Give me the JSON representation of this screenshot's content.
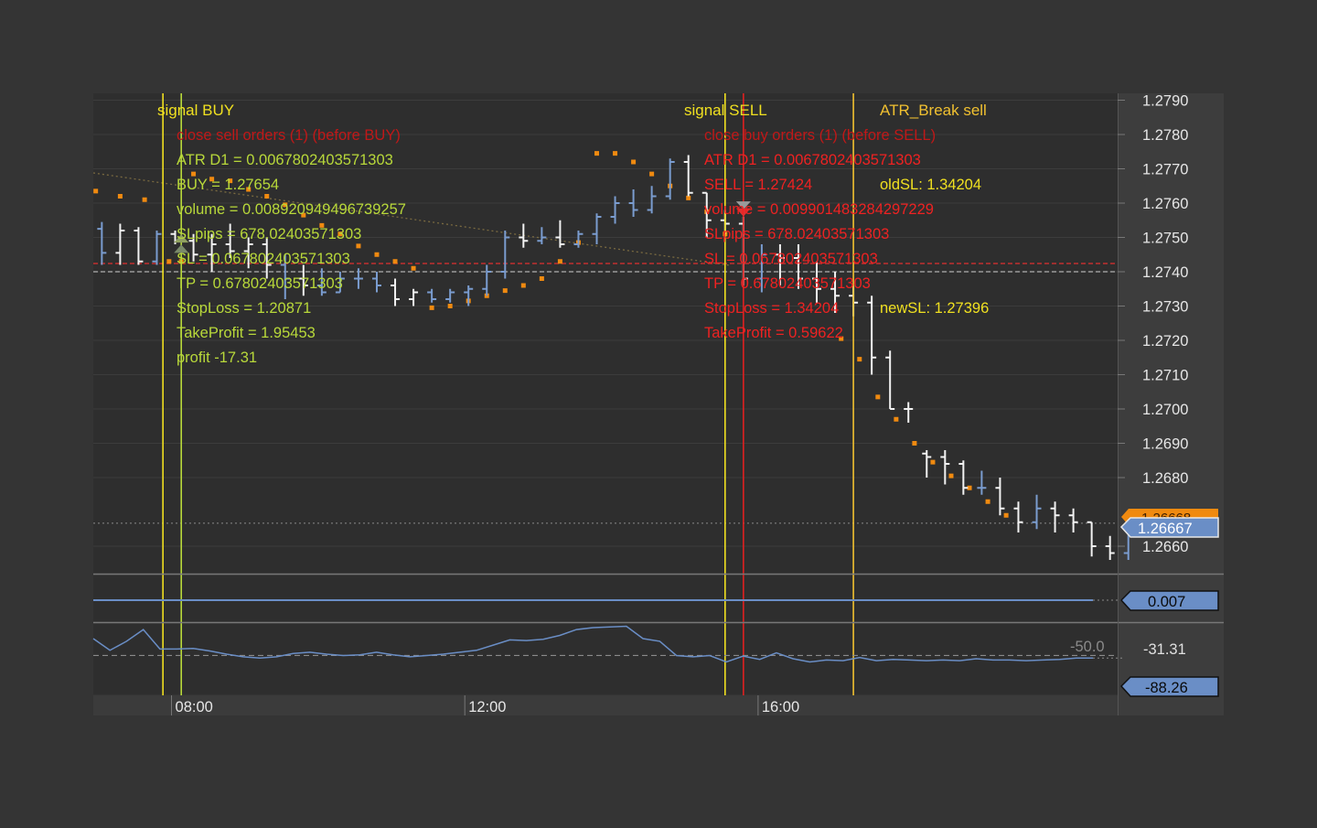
{
  "chart_data": {
    "type": "ohlc",
    "price_axis": {
      "ylim": [
        1.2652,
        1.2792
      ],
      "ticks": [
        "1.2790",
        "1.2780",
        "1.2770",
        "1.2760",
        "1.2750",
        "1.2740",
        "1.2730",
        "1.2720",
        "1.2710",
        "1.2700",
        "1.2690",
        "1.2680",
        "1.2660"
      ],
      "grid": true
    },
    "time_axis": {
      "labels": [
        "08:00",
        "12:00",
        "16:00"
      ],
      "start": "06:53",
      "end": "20:37",
      "bar_minutes": 15
    },
    "last_price_labels": [
      "1.26668",
      "1.26667"
    ],
    "bars": [
      {
        "t": "07:00",
        "o": 1.27525,
        "h": 1.27545,
        "l": 1.2742,
        "c": 1.27455,
        "color": "blue"
      },
      {
        "t": "07:15",
        "o": 1.27455,
        "h": 1.2754,
        "l": 1.2742,
        "c": 1.2752,
        "color": "white"
      },
      {
        "t": "07:30",
        "o": 1.2752,
        "h": 1.2753,
        "l": 1.2742,
        "c": 1.2743,
        "color": "white"
      },
      {
        "t": "07:45",
        "o": 1.2743,
        "h": 1.2752,
        "l": 1.2742,
        "c": 1.2751,
        "color": "blue"
      },
      {
        "t": "08:00",
        "o": 1.2751,
        "h": 1.2752,
        "l": 1.2748,
        "c": 1.2749,
        "color": "white"
      },
      {
        "t": "08:15",
        "o": 1.2749,
        "h": 1.2751,
        "l": 1.2743,
        "c": 1.2745,
        "color": "white"
      },
      {
        "t": "08:30",
        "o": 1.2745,
        "h": 1.2751,
        "l": 1.274,
        "c": 1.2748,
        "color": "white"
      },
      {
        "t": "08:45",
        "o": 1.2748,
        "h": 1.2754,
        "l": 1.2744,
        "c": 1.2746,
        "color": "white"
      },
      {
        "t": "09:00",
        "o": 1.2746,
        "h": 1.275,
        "l": 1.2741,
        "c": 1.2748,
        "color": "white"
      },
      {
        "t": "09:15",
        "o": 1.2748,
        "h": 1.275,
        "l": 1.2738,
        "c": 1.2742,
        "color": "white"
      },
      {
        "t": "09:30",
        "o": 1.2742,
        "h": 1.2745,
        "l": 1.2732,
        "c": 1.2738,
        "color": "blue"
      },
      {
        "t": "09:45",
        "o": 1.2738,
        "h": 1.2742,
        "l": 1.2733,
        "c": 1.2736,
        "color": "white"
      },
      {
        "t": "10:00",
        "o": 1.2736,
        "h": 1.2741,
        "l": 1.2733,
        "c": 1.2734,
        "color": "blue"
      },
      {
        "t": "10:15",
        "o": 1.2734,
        "h": 1.274,
        "l": 1.2734,
        "c": 1.2738,
        "color": "blue"
      },
      {
        "t": "10:30",
        "o": 1.2738,
        "h": 1.2741,
        "l": 1.2735,
        "c": 1.2738,
        "color": "blue"
      },
      {
        "t": "10:45",
        "o": 1.2738,
        "h": 1.274,
        "l": 1.2734,
        "c": 1.2736,
        "color": "blue"
      },
      {
        "t": "11:00",
        "o": 1.2736,
        "h": 1.2738,
        "l": 1.273,
        "c": 1.2732,
        "color": "white"
      },
      {
        "t": "11:15",
        "o": 1.2732,
        "h": 1.2735,
        "l": 1.273,
        "c": 1.2734,
        "color": "white"
      },
      {
        "t": "11:30",
        "o": 1.2734,
        "h": 1.2735,
        "l": 1.2731,
        "c": 1.2732,
        "color": "blue"
      },
      {
        "t": "11:45",
        "o": 1.2732,
        "h": 1.2735,
        "l": 1.2731,
        "c": 1.2734,
        "color": "blue"
      },
      {
        "t": "12:00",
        "o": 1.2734,
        "h": 1.2736,
        "l": 1.273,
        "c": 1.2735,
        "color": "blue"
      },
      {
        "t": "12:15",
        "o": 1.2735,
        "h": 1.2742,
        "l": 1.2733,
        "c": 1.274,
        "color": "blue"
      },
      {
        "t": "12:30",
        "o": 1.274,
        "h": 1.2752,
        "l": 1.2738,
        "c": 1.275,
        "color": "blue"
      },
      {
        "t": "12:45",
        "o": 1.275,
        "h": 1.2754,
        "l": 1.2747,
        "c": 1.2749,
        "color": "white"
      },
      {
        "t": "13:00",
        "o": 1.2749,
        "h": 1.2753,
        "l": 1.2748,
        "c": 1.275,
        "color": "blue"
      },
      {
        "t": "13:15",
        "o": 1.275,
        "h": 1.2755,
        "l": 1.2747,
        "c": 1.2748,
        "color": "white"
      },
      {
        "t": "13:30",
        "o": 1.2748,
        "h": 1.2752,
        "l": 1.2747,
        "c": 1.2751,
        "color": "blue"
      },
      {
        "t": "13:45",
        "o": 1.2751,
        "h": 1.2757,
        "l": 1.2748,
        "c": 1.2756,
        "color": "blue"
      },
      {
        "t": "14:00",
        "o": 1.2756,
        "h": 1.2762,
        "l": 1.2754,
        "c": 1.276,
        "color": "blue"
      },
      {
        "t": "14:15",
        "o": 1.276,
        "h": 1.2764,
        "l": 1.2756,
        "c": 1.2758,
        "color": "blue"
      },
      {
        "t": "14:30",
        "o": 1.2758,
        "h": 1.2765,
        "l": 1.2757,
        "c": 1.2762,
        "color": "blue"
      },
      {
        "t": "14:45",
        "o": 1.2762,
        "h": 1.2773,
        "l": 1.2761,
        "c": 1.2772,
        "color": "blue"
      },
      {
        "t": "15:00",
        "o": 1.2772,
        "h": 1.2774,
        "l": 1.2762,
        "c": 1.2763,
        "color": "white"
      },
      {
        "t": "15:15",
        "o": 1.2763,
        "h": 1.2763,
        "l": 1.275,
        "c": 1.2755,
        "color": "white"
      },
      {
        "t": "15:30",
        "o": 1.2755,
        "h": 1.2758,
        "l": 1.2751,
        "c": 1.2754,
        "color": "white"
      },
      {
        "t": "15:45",
        "o": 1.2754,
        "h": 1.2756,
        "l": 1.2736,
        "c": 1.2738,
        "color": "white"
      },
      {
        "t": "16:00",
        "o": 1.2738,
        "h": 1.2748,
        "l": 1.2734,
        "c": 1.2745,
        "color": "blue"
      },
      {
        "t": "16:15",
        "o": 1.2745,
        "h": 1.2748,
        "l": 1.2736,
        "c": 1.2744,
        "color": "white"
      },
      {
        "t": "16:30",
        "o": 1.2744,
        "h": 1.2748,
        "l": 1.2735,
        "c": 1.2738,
        "color": "white"
      },
      {
        "t": "16:45",
        "o": 1.2738,
        "h": 1.2743,
        "l": 1.2731,
        "c": 1.2735,
        "color": "white"
      },
      {
        "t": "17:00",
        "o": 1.2735,
        "h": 1.274,
        "l": 1.2728,
        "c": 1.2733,
        "color": "white"
      },
      {
        "t": "17:15",
        "o": 1.2733,
        "h": 1.2736,
        "l": 1.2727,
        "c": 1.2731,
        "color": "white"
      },
      {
        "t": "17:30",
        "o": 1.2731,
        "h": 1.2733,
        "l": 1.271,
        "c": 1.2715,
        "color": "white"
      },
      {
        "t": "17:45",
        "o": 1.2715,
        "h": 1.2717,
        "l": 1.27,
        "c": 1.27,
        "color": "white"
      },
      {
        "t": "18:00",
        "o": 1.27,
        "h": 1.2702,
        "l": 1.2696,
        "c": 1.27,
        "color": "white"
      },
      {
        "t": "18:15",
        "o": 1.2687,
        "h": 1.2688,
        "l": 1.268,
        "c": 1.2686,
        "color": "white"
      },
      {
        "t": "18:30",
        "o": 1.2686,
        "h": 1.2688,
        "l": 1.2678,
        "c": 1.2684,
        "color": "white"
      },
      {
        "t": "18:45",
        "o": 1.2684,
        "h": 1.2685,
        "l": 1.2675,
        "c": 1.2677,
        "color": "white"
      },
      {
        "t": "19:00",
        "o": 1.2677,
        "h": 1.2682,
        "l": 1.2675,
        "c": 1.2677,
        "color": "blue"
      },
      {
        "t": "19:15",
        "o": 1.2677,
        "h": 1.268,
        "l": 1.2669,
        "c": 1.2671,
        "color": "white"
      },
      {
        "t": "19:30",
        "o": 1.2671,
        "h": 1.2673,
        "l": 1.2664,
        "c": 1.2667,
        "color": "white"
      },
      {
        "t": "19:45",
        "o": 1.2667,
        "h": 1.2675,
        "l": 1.2665,
        "c": 1.2671,
        "color": "blue"
      },
      {
        "t": "20:00",
        "o": 1.2671,
        "h": 1.2673,
        "l": 1.2664,
        "c": 1.2669,
        "color": "white"
      },
      {
        "t": "20:15",
        "o": 1.2669,
        "h": 1.2671,
        "l": 1.2664,
        "c": 1.2667,
        "color": "white"
      },
      {
        "t": "20:30",
        "o": 1.2667,
        "h": 1.2667,
        "l": 1.2657,
        "c": 1.266,
        "color": "white"
      },
      {
        "t": "20:45",
        "o": 1.266,
        "h": 1.2663,
        "l": 1.2656,
        "c": 1.2658,
        "color": "white"
      },
      {
        "t": "21:00",
        "o": 1.2658,
        "h": 1.2667,
        "l": 1.2656,
        "c": 1.2666,
        "color": "blue"
      },
      {
        "t": "21:15",
        "o": 1.2666,
        "h": 1.2669,
        "l": 1.2664,
        "c": 1.26667,
        "color": "blue"
      }
    ],
    "parabolic_sar": [
      {
        "t": "06:55",
        "v": 1.27635
      },
      {
        "t": "07:15",
        "v": 1.2762
      },
      {
        "t": "07:35",
        "v": 1.2761
      },
      {
        "t": "07:55",
        "v": 1.2743
      },
      {
        "t": "08:05",
        "v": 1.2743
      },
      {
        "t": "08:15",
        "v": 1.27685
      },
      {
        "t": "08:30",
        "v": 1.2767
      },
      {
        "t": "08:45",
        "v": 1.27665
      },
      {
        "t": "09:00",
        "v": 1.2764
      },
      {
        "t": "09:15",
        "v": 1.2762
      },
      {
        "t": "09:30",
        "v": 1.27595
      },
      {
        "t": "09:45",
        "v": 1.27565
      },
      {
        "t": "10:00",
        "v": 1.27535
      },
      {
        "t": "10:15",
        "v": 1.2751
      },
      {
        "t": "10:30",
        "v": 1.27475
      },
      {
        "t": "10:45",
        "v": 1.2745
      },
      {
        "t": "11:00",
        "v": 1.2743
      },
      {
        "t": "11:15",
        "v": 1.2741
      },
      {
        "t": "11:30",
        "v": 1.27295
      },
      {
        "t": "11:45",
        "v": 1.273
      },
      {
        "t": "12:00",
        "v": 1.27315
      },
      {
        "t": "12:15",
        "v": 1.2733
      },
      {
        "t": "12:30",
        "v": 1.27345
      },
      {
        "t": "12:45",
        "v": 1.2736
      },
      {
        "t": "13:00",
        "v": 1.2738
      },
      {
        "t": "13:15",
        "v": 1.2743
      },
      {
        "t": "13:30",
        "v": 1.27485
      },
      {
        "t": "13:45",
        "v": 1.27745
      },
      {
        "t": "14:00",
        "v": 1.27745
      },
      {
        "t": "14:15",
        "v": 1.2772
      },
      {
        "t": "14:30",
        "v": 1.27685
      },
      {
        "t": "14:45",
        "v": 1.2765
      },
      {
        "t": "15:00",
        "v": 1.27615
      },
      {
        "t": "15:15",
        "v": 1.27575
      },
      {
        "t": "15:30",
        "v": 1.2751
      },
      {
        "t": "17:05",
        "v": 1.27205
      },
      {
        "t": "17:20",
        "v": 1.27145
      },
      {
        "t": "17:35",
        "v": 1.27035
      },
      {
        "t": "17:50",
        "v": 1.2697
      },
      {
        "t": "18:05",
        "v": 1.269
      },
      {
        "t": "18:20",
        "v": 1.26845
      },
      {
        "t": "18:35",
        "v": 1.26805
      },
      {
        "t": "18:50",
        "v": 1.2677
      },
      {
        "t": "19:05",
        "v": 1.2673
      },
      {
        "t": "19:20",
        "v": 1.2669
      }
    ],
    "markers": [
      {
        "type": "signal",
        "label": "signal BUY",
        "t": "07:50",
        "color": "#f0e020"
      },
      {
        "type": "entry",
        "t": "08:05",
        "color": "#b8d83a"
      },
      {
        "type": "signal",
        "label": "signal SELL",
        "t": "15:30",
        "color": "#f0e020"
      },
      {
        "type": "entry",
        "t": "15:45",
        "color": "#e02020"
      },
      {
        "type": "signal",
        "label": "ATR_Break sell",
        "t": "17:15",
        "color": "#f0c030"
      }
    ],
    "buy_info": {
      "close_line": "close sell orders (1) (before BUY)",
      "lines": [
        "ATR D1 = 0.0067802403571303",
        "BUY = 1.27654",
        "volume = 0.008920949496739257",
        "SLpips = 678.02403571303",
        "SL = 0.067802403571303",
        "TP = 0.67802403571303",
        "StopLoss = 1.20871",
        "TakeProfit = 1.95453",
        "profit -17.31"
      ]
    },
    "sell_info": {
      "close_line": "close buy orders (1) (before SELL)",
      "lines": [
        "ATR D1 = 0.0067802403571303",
        "SELL = 1.27424",
        "volume = 0.009901483284297229",
        "SLpips = 678.02403571303",
        "SL = 0.067802403571303",
        "TP = 0.67802403571303",
        "StopLoss = 1.34204",
        "TakeProfit = 0.59622"
      ]
    },
    "atr_info": {
      "old_sl": "oldSL: 1.34204",
      "new_sl": "newSL: 1.27396"
    },
    "h_lines": {
      "red_dashed": 1.27424,
      "gray_dashed": 1.274,
      "last_dotted": 1.26667
    },
    "indicator1": {
      "value_label": "0.007"
    },
    "indicator2": {
      "level_label": "-50.0",
      "axis_label": "-31.31",
      "value_label": "-88.26",
      "ylim": [
        -110,
        0
      ],
      "level": -50,
      "values": [
        -24,
        -42,
        -28,
        -10,
        -40,
        -40,
        -39,
        -43,
        -48,
        -52,
        -54,
        -52,
        -47,
        -45,
        -48,
        -50,
        -49,
        -45,
        -49,
        -52,
        -50,
        -48,
        -45,
        -42,
        -34,
        -26,
        -27,
        -25,
        -19,
        -10,
        -7,
        -6,
        -5,
        -24,
        -28,
        -50,
        -52,
        -50,
        -60,
        -51,
        -56,
        -46,
        -55,
        -60,
        -57,
        -58,
        -53,
        -58,
        -56,
        -57,
        -58,
        -57,
        -58,
        -55,
        -57,
        -57,
        -58,
        -57,
        -56,
        -54,
        -54
      ]
    }
  }
}
